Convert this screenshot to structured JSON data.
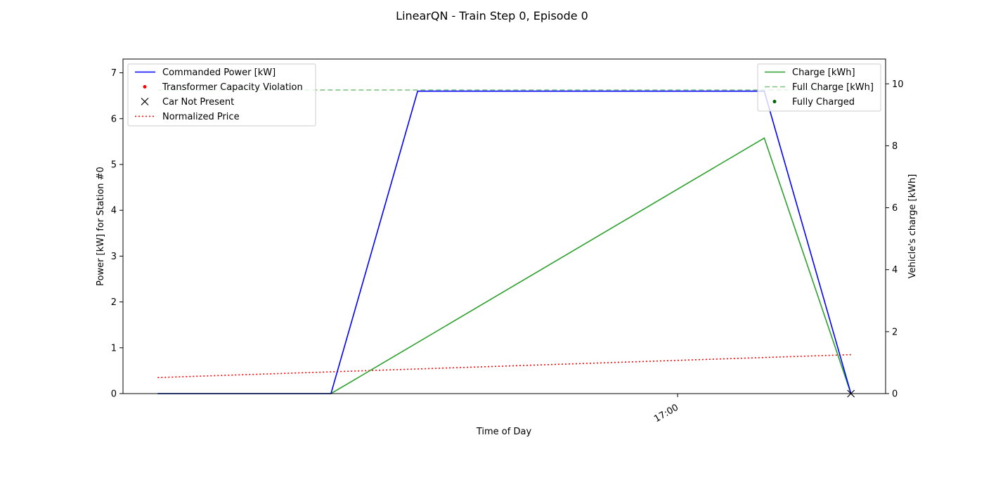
{
  "chart_data": {
    "type": "line",
    "title": "LinearQN - Train Step 0, Episode 0",
    "xlabel": "Time of Day",
    "ylabel_left": "Power [kW] for Station #0",
    "ylabel_right": "Vehicle's charge [kWh]",
    "x_ticks": [
      "17:00"
    ],
    "x_tick_value": 3.0,
    "xlim": [
      -0.2,
      4.2
    ],
    "ylim_left": [
      0,
      7.3
    ],
    "ylim_right": [
      0,
      10.8
    ],
    "y_ticks_left": [
      0,
      1,
      2,
      3,
      4,
      5,
      6,
      7
    ],
    "y_ticks_right": [
      0,
      2,
      4,
      6,
      8,
      10
    ],
    "grid": false,
    "x": [
      0,
      1,
      1.5,
      2,
      2.5,
      3,
      3.5,
      4
    ],
    "series": [
      {
        "name": "Commanded Power [kW]",
        "axis": "left",
        "style": "solid",
        "color": "#0000ff",
        "values": [
          0,
          0,
          6.6,
          6.6,
          6.6,
          6.6,
          6.6,
          0
        ]
      },
      {
        "name": "Normalized Price",
        "axis": "left",
        "style": "dotted",
        "color": "#ff0000",
        "x": [
          0,
          4
        ],
        "values": [
          0.35,
          0.85
        ]
      },
      {
        "name": "Charge [kWh]",
        "axis": "right",
        "style": "solid",
        "color": "#2ca02c",
        "x": [
          0,
          1,
          3.5,
          4
        ],
        "values": [
          0,
          0,
          8.25,
          0
        ]
      },
      {
        "name": "Full Charge [kWh]",
        "axis": "right",
        "style": "dashed",
        "color": "#2ca02c",
        "x": [
          0,
          4
        ],
        "values": [
          9.8,
          9.8
        ]
      },
      {
        "name": "Transformer Capacity Violation",
        "axis": "left",
        "style": "marker-dot",
        "color": "#ff0000",
        "x": [],
        "values": []
      },
      {
        "name": "Car Not Present",
        "axis": "left",
        "style": "marker-x",
        "color": "#000000",
        "x": [
          4
        ],
        "values": [
          0
        ]
      },
      {
        "name": "Fully Charged",
        "axis": "right",
        "style": "marker-dot",
        "color": "#006400",
        "x": [],
        "values": []
      }
    ],
    "legend_left": {
      "placement": "top-left",
      "entries": [
        "Commanded Power [kW]",
        "Transformer Capacity Violation",
        "Car Not Present",
        "Normalized Price"
      ]
    },
    "legend_right": {
      "placement": "top-right",
      "entries": [
        "Charge [kWh]",
        "Full Charge [kWh]",
        "Fully Charged"
      ]
    }
  }
}
